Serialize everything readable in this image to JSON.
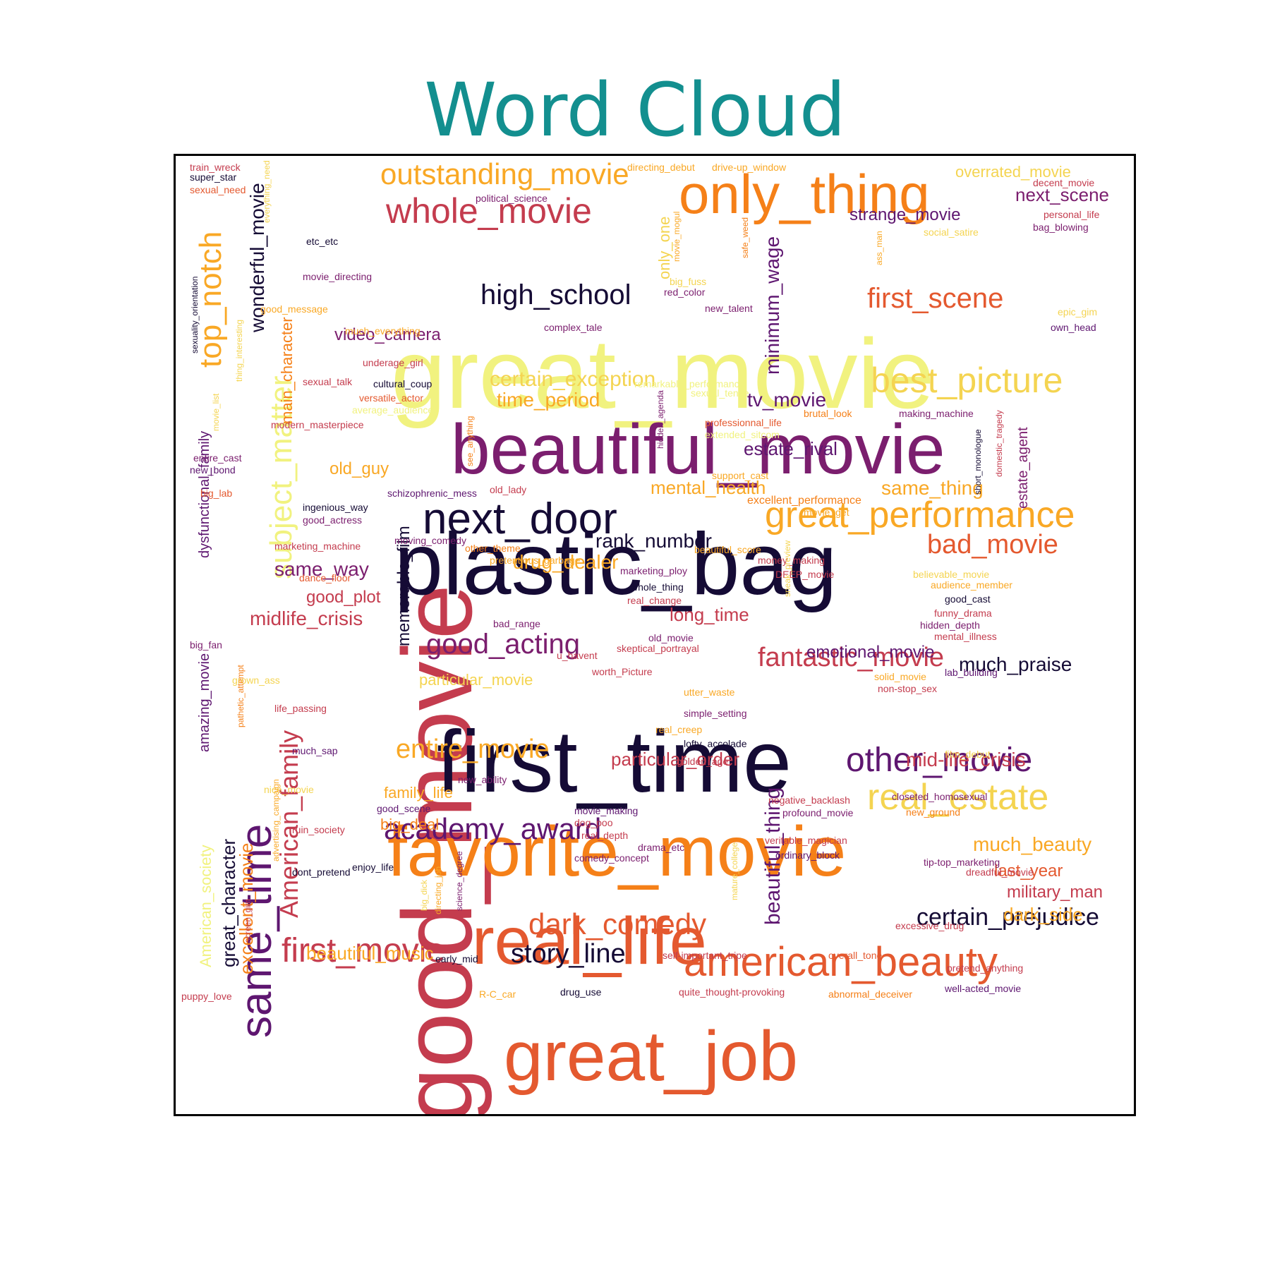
{
  "title": "Word Cloud",
  "colors": {
    "title": "#138f8f",
    "c0": "#150b35",
    "c1": "#5e1670",
    "c2": "#7b1e6e",
    "c3": "#c43c4e",
    "c4": "#e4592f",
    "c5": "#f58018",
    "c6": "#f9a825",
    "c7": "#f4d451",
    "c8": "#f1f27f"
  },
  "words": [
    {
      "text": "great_movie",
      "color": "c8"
    },
    {
      "text": "good_movie",
      "color": "c3"
    },
    {
      "text": "plastic_bag",
      "color": "c0"
    },
    {
      "text": "first_time",
      "color": "c0"
    },
    {
      "text": "beautiful_movie",
      "color": "c2"
    },
    {
      "text": "favorite_movie",
      "color": "c5"
    },
    {
      "text": "great_job",
      "color": "c4"
    },
    {
      "text": "real_life",
      "color": "c4"
    },
    {
      "text": "only_thing",
      "color": "c5"
    },
    {
      "text": "next_door",
      "color": "c0"
    },
    {
      "text": "same_time",
      "color": "c1"
    },
    {
      "text": "whole_movie",
      "color": "c3"
    },
    {
      "text": "outstanding_movie",
      "color": "c6"
    },
    {
      "text": "american_beauty",
      "color": "c4"
    },
    {
      "text": "great_performance",
      "color": "c6"
    },
    {
      "text": "best_picture",
      "color": "c7"
    },
    {
      "text": "real_estate",
      "color": "c7"
    },
    {
      "text": "top_notch",
      "color": "c6"
    },
    {
      "text": "subject_matter",
      "color": "c8"
    },
    {
      "text": "high_school",
      "color": "c0"
    },
    {
      "text": "first_scene",
      "color": "c4"
    },
    {
      "text": "other_movie",
      "color": "c1"
    },
    {
      "text": "academy_award",
      "color": "c1"
    },
    {
      "text": "first_movie",
      "color": "c3"
    },
    {
      "text": "dark_comedy",
      "color": "c4"
    },
    {
      "text": "good_acting",
      "color": "c2"
    },
    {
      "text": "fantastic_movie",
      "color": "c3"
    },
    {
      "text": "bad_movie",
      "color": "c4"
    },
    {
      "text": "entire_movie",
      "color": "c6"
    },
    {
      "text": "American_family",
      "color": "c3"
    },
    {
      "text": "story_line",
      "color": "c0"
    },
    {
      "text": "certain_prejudice",
      "color": "c0"
    },
    {
      "text": "beautiful_thing",
      "color": "c1"
    },
    {
      "text": "wonderful_movie",
      "color": "c0"
    },
    {
      "text": "minimum_wage",
      "color": "c1"
    },
    {
      "text": "next_scene",
      "color": "c2"
    },
    {
      "text": "strange_movie",
      "color": "c1"
    },
    {
      "text": "video_camera",
      "color": "c2"
    },
    {
      "text": "certain_exception",
      "color": "c7"
    },
    {
      "text": "time_period",
      "color": "c6"
    },
    {
      "text": "tv_movie",
      "color": "c1"
    },
    {
      "text": "estate_rival",
      "color": "c1"
    },
    {
      "text": "drug_dealer",
      "color": "c6"
    },
    {
      "text": "midlife_crisis",
      "color": "c3"
    },
    {
      "text": "rank_number",
      "color": "c0"
    },
    {
      "text": "mental_health",
      "color": "c6"
    },
    {
      "text": "same_thing",
      "color": "c6"
    },
    {
      "text": "same_way",
      "color": "c2"
    },
    {
      "text": "long_time",
      "color": "c3"
    },
    {
      "text": "good_plot",
      "color": "c3"
    },
    {
      "text": "old_guy",
      "color": "c6"
    },
    {
      "text": "much_praise",
      "color": "c0"
    },
    {
      "text": "emotional_movie",
      "color": "c1"
    },
    {
      "text": "particular_order",
      "color": "c3"
    },
    {
      "text": "mid-life_crisis",
      "color": "c3"
    },
    {
      "text": "much_beauty",
      "color": "c6"
    },
    {
      "text": "military_man",
      "color": "c3"
    },
    {
      "text": "dark_side",
      "color": "c6"
    },
    {
      "text": "last_year",
      "color": "c4"
    },
    {
      "text": "beautiful_music",
      "color": "c6"
    },
    {
      "text": "great_character",
      "color": "c0"
    },
    {
      "text": "excellent_movie",
      "color": "c5"
    },
    {
      "text": "memorable_film",
      "color": "c0"
    },
    {
      "text": "family_life",
      "color": "c6"
    },
    {
      "text": "big_deal",
      "color": "c5"
    },
    {
      "text": "particular_movie",
      "color": "c7"
    },
    {
      "text": "amazing_movie",
      "color": "c1"
    },
    {
      "text": "dysfunctional_family",
      "color": "c1"
    },
    {
      "text": "main_character",
      "color": "c5"
    },
    {
      "text": "only_one",
      "color": "c7"
    },
    {
      "text": "estate_agent",
      "color": "c2"
    },
    {
      "text": "American_society",
      "color": "c8"
    },
    {
      "text": "overrated_movie",
      "color": "c7"
    },
    {
      "text": "excellent_performance",
      "color": "c5"
    },
    {
      "text": "train_wreck",
      "color": "c3"
    },
    {
      "text": "super_star",
      "color": "c0"
    },
    {
      "text": "sexual_need",
      "color": "c4"
    },
    {
      "text": "everything_need",
      "color": "c7"
    },
    {
      "text": "political_science",
      "color": "c2"
    },
    {
      "text": "directing_debut",
      "color": "c6"
    },
    {
      "text": "drive-up_window",
      "color": "c6"
    },
    {
      "text": "decent_movie",
      "color": "c3"
    },
    {
      "text": "personal_life",
      "color": "c3"
    },
    {
      "text": "bag_blowing",
      "color": "c2"
    },
    {
      "text": "social_satire",
      "color": "c7"
    },
    {
      "text": "etc_etc",
      "color": "c0"
    },
    {
      "text": "movie_mogul",
      "color": "c6"
    },
    {
      "text": "movie_directing",
      "color": "c2"
    },
    {
      "text": "big_fuss",
      "color": "c7"
    },
    {
      "text": "red_color",
      "color": "c2"
    },
    {
      "text": "safe_weed",
      "color": "c5"
    },
    {
      "text": "ass_man",
      "color": "c6"
    },
    {
      "text": "good_message",
      "color": "c6"
    },
    {
      "text": "new_talent",
      "color": "c2"
    },
    {
      "text": "epic_gim",
      "color": "c7"
    },
    {
      "text": "own_head",
      "color": "c1"
    },
    {
      "text": "complex_tale",
      "color": "c2"
    },
    {
      "text": "much_everything",
      "color": "c6"
    },
    {
      "text": "underage_girl",
      "color": "c3"
    },
    {
      "text": "sexuality_orientation",
      "color": "c0"
    },
    {
      "text": "sexual_talk",
      "color": "c3"
    },
    {
      "text": "cultural_coup",
      "color": "c0"
    },
    {
      "text": "versatile_actor",
      "color": "c4"
    },
    {
      "text": "remarkable_performance",
      "color": "c8"
    },
    {
      "text": "sexual_tense",
      "color": "c8"
    },
    {
      "text": "average_audience",
      "color": "c8"
    },
    {
      "text": "thing_interesting",
      "color": "c7"
    },
    {
      "text": "movie_list",
      "color": "c7"
    },
    {
      "text": "modern_masterpiece",
      "color": "c3"
    },
    {
      "text": "hidden_agenda",
      "color": "c2"
    },
    {
      "text": "professionnal_life",
      "color": "c4"
    },
    {
      "text": "extended_sitcom",
      "color": "c8"
    },
    {
      "text": "brutal_look",
      "color": "c5"
    },
    {
      "text": "making_machine",
      "color": "c2"
    },
    {
      "text": "entire_cast",
      "color": "c2"
    },
    {
      "text": "new_bond",
      "color": "c1"
    },
    {
      "text": "support_cast",
      "color": "c6"
    },
    {
      "text": "short_monologue",
      "color": "c0"
    },
    {
      "text": "domestic_tragedy",
      "color": "c3"
    },
    {
      "text": "big_lab",
      "color": "c4"
    },
    {
      "text": "schizophrenic_mess",
      "color": "c1"
    },
    {
      "text": "old_lady",
      "color": "c3"
    },
    {
      "text": "movie_get",
      "color": "c6"
    },
    {
      "text": "ingenious_way",
      "color": "c0"
    },
    {
      "text": "good_actress",
      "color": "c2"
    },
    {
      "text": "moving_comedy",
      "color": "c2"
    },
    {
      "text": "marketing_machine",
      "color": "c3"
    },
    {
      "text": "other_theme",
      "color": "c5"
    },
    {
      "text": "beautiful_score",
      "color": "c6"
    },
    {
      "text": "pretentious_garbage",
      "color": "c6"
    },
    {
      "text": "money_making",
      "color": "c3"
    },
    {
      "text": "dance_floor",
      "color": "c4"
    },
    {
      "text": "marketing_ploy",
      "color": "c2"
    },
    {
      "text": "DEEP_movie",
      "color": "c3"
    },
    {
      "text": "believable_movie",
      "color": "c7"
    },
    {
      "text": "audience_member",
      "color": "c6"
    },
    {
      "text": "whole_thing",
      "color": "c0"
    },
    {
      "text": "real_change",
      "color": "c3"
    },
    {
      "text": "sneak_preview",
      "color": "c7"
    },
    {
      "text": "good_cast",
      "color": "c0"
    },
    {
      "text": "funny_drama",
      "color": "c3"
    },
    {
      "text": "see_anything",
      "color": "c5"
    },
    {
      "text": "bad_range",
      "color": "c2"
    },
    {
      "text": "old_movie",
      "color": "c2"
    },
    {
      "text": "hidden_depth",
      "color": "c2"
    },
    {
      "text": "mental_illness",
      "color": "c3"
    },
    {
      "text": "skeptical_portrayal",
      "color": "c3"
    },
    {
      "text": "big_fan",
      "color": "c2"
    },
    {
      "text": "u_havent",
      "color": "c3"
    },
    {
      "text": "worth_Picture",
      "color": "c3"
    },
    {
      "text": "lab_building",
      "color": "c1"
    },
    {
      "text": "grown_ass",
      "color": "c7"
    },
    {
      "text": "solid_movie",
      "color": "c6"
    },
    {
      "text": "non-stop_sex",
      "color": "c3"
    },
    {
      "text": "utter_waste",
      "color": "c6"
    },
    {
      "text": "life_passing",
      "color": "c3"
    },
    {
      "text": "pathetic_attempt",
      "color": "c5"
    },
    {
      "text": "simple_setting",
      "color": "c2"
    },
    {
      "text": "real_creep",
      "color": "c6"
    },
    {
      "text": "lofty_accolade",
      "color": "c0"
    },
    {
      "text": "much_sap",
      "color": "c1"
    },
    {
      "text": "film_debut",
      "color": "c7"
    },
    {
      "text": "golden_age",
      "color": "c3"
    },
    {
      "text": "new_ability",
      "color": "c2"
    },
    {
      "text": "nice_movie",
      "color": "c7"
    },
    {
      "text": "closeted_homosexual",
      "color": "c2"
    },
    {
      "text": "negative_backlash",
      "color": "c3"
    },
    {
      "text": "new_ground",
      "color": "c5"
    },
    {
      "text": "profound_movie",
      "color": "c2"
    },
    {
      "text": "good_scene",
      "color": "c1"
    },
    {
      "text": "movie_making",
      "color": "c1"
    },
    {
      "text": "dog_poo",
      "color": "c3"
    },
    {
      "text": "ruin_society",
      "color": "c3"
    },
    {
      "text": "real_depth",
      "color": "c3"
    },
    {
      "text": "drama_etc",
      "color": "c2"
    },
    {
      "text": "veritable_magician",
      "color": "c3"
    },
    {
      "text": "ordinary_block",
      "color": "c1"
    },
    {
      "text": "comedy_concept",
      "color": "c2"
    },
    {
      "text": "advertising_campaign",
      "color": "c6"
    },
    {
      "text": "tip-top_marketing",
      "color": "c2"
    },
    {
      "text": "dont_pretend",
      "color": "c0"
    },
    {
      "text": "enjoy_life",
      "color": "c0"
    },
    {
      "text": "dreadful_movie",
      "color": "c3"
    },
    {
      "text": "big_dick",
      "color": "c7"
    },
    {
      "text": "directing_job",
      "color": "c6"
    },
    {
      "text": "mature_college",
      "color": "c7"
    },
    {
      "text": "science_degree",
      "color": "c2"
    },
    {
      "text": "screen_gim",
      "color": "c3"
    },
    {
      "text": "excessive_drug",
      "color": "c3"
    },
    {
      "text": "early_mid",
      "color": "c0"
    },
    {
      "text": "self-important_tripe",
      "color": "c3"
    },
    {
      "text": "overall_tone",
      "color": "c4"
    },
    {
      "text": "pretend_anything",
      "color": "c3"
    },
    {
      "text": "puppy_love",
      "color": "c3"
    },
    {
      "text": "R-C_car",
      "color": "c6"
    },
    {
      "text": "drug_use",
      "color": "c0"
    },
    {
      "text": "quite_thought-provoking",
      "color": "c3"
    },
    {
      "text": "abnormal_deceiver",
      "color": "c5"
    },
    {
      "text": "well-acted_movie",
      "color": "c1"
    },
    {
      "text": "lofty_position",
      "color": "c3"
    }
  ]
}
